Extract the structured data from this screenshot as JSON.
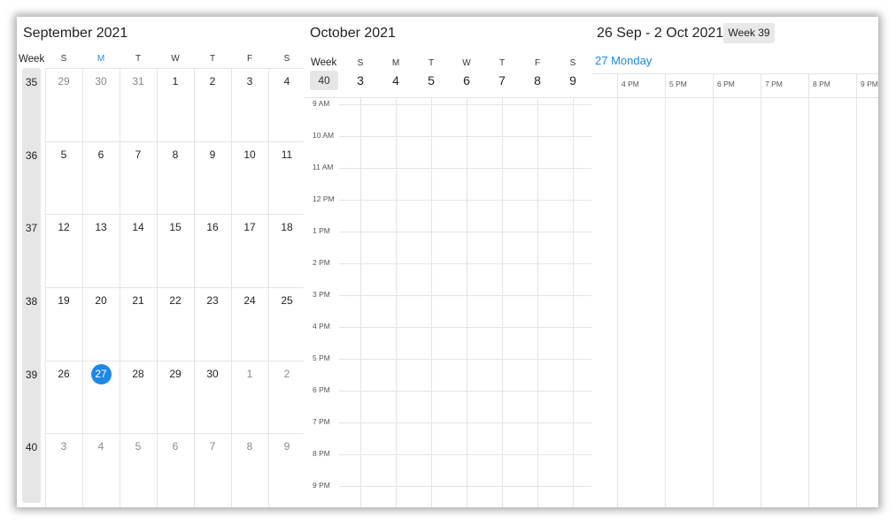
{
  "month_view": {
    "title": "September 2021",
    "week_header": "Week",
    "days_of_week": [
      "S",
      "M",
      "T",
      "W",
      "T",
      "F",
      "S"
    ],
    "today_index": 1,
    "weeks": [
      {
        "number": "35",
        "days": [
          {
            "d": "29",
            "other": true
          },
          {
            "d": "30",
            "other": true
          },
          {
            "d": "31",
            "other": true
          },
          {
            "d": "1"
          },
          {
            "d": "2"
          },
          {
            "d": "3"
          },
          {
            "d": "4"
          }
        ]
      },
      {
        "number": "36",
        "days": [
          {
            "d": "5"
          },
          {
            "d": "6"
          },
          {
            "d": "7"
          },
          {
            "d": "8"
          },
          {
            "d": "9"
          },
          {
            "d": "10"
          },
          {
            "d": "11"
          }
        ]
      },
      {
        "number": "37",
        "days": [
          {
            "d": "12"
          },
          {
            "d": "13"
          },
          {
            "d": "14"
          },
          {
            "d": "15"
          },
          {
            "d": "16"
          },
          {
            "d": "17"
          },
          {
            "d": "18"
          }
        ]
      },
      {
        "number": "38",
        "days": [
          {
            "d": "19"
          },
          {
            "d": "20"
          },
          {
            "d": "21"
          },
          {
            "d": "22"
          },
          {
            "d": "23"
          },
          {
            "d": "24"
          },
          {
            "d": "25"
          }
        ]
      },
      {
        "number": "39",
        "days": [
          {
            "d": "26"
          },
          {
            "d": "27",
            "today": true
          },
          {
            "d": "28"
          },
          {
            "d": "29"
          },
          {
            "d": "30"
          },
          {
            "d": "1",
            "other": true
          },
          {
            "d": "2",
            "other": true
          }
        ]
      },
      {
        "number": "40",
        "days": [
          {
            "d": "3",
            "other": true
          },
          {
            "d": "4",
            "other": true
          },
          {
            "d": "5",
            "other": true
          },
          {
            "d": "6",
            "other": true
          },
          {
            "d": "7",
            "other": true
          },
          {
            "d": "8",
            "other": true
          },
          {
            "d": "9",
            "other": true
          }
        ]
      }
    ]
  },
  "week_view": {
    "title": "October 2021",
    "week_label": "Week",
    "week_number": "40",
    "days_of_week": [
      "S",
      "M",
      "T",
      "W",
      "T",
      "F",
      "S"
    ],
    "dates": [
      "3",
      "4",
      "5",
      "6",
      "7",
      "8",
      "9"
    ],
    "times": [
      "9 AM",
      "10 AM",
      "11 AM",
      "12 PM",
      "1 PM",
      "2 PM",
      "3 PM",
      "4 PM",
      "5 PM",
      "6 PM",
      "7 PM",
      "8 PM",
      "9 PM"
    ]
  },
  "timeline_view": {
    "title": "26 Sep - 2 Oct 2021",
    "week_badge": "Week 39",
    "date_label": "27 Monday",
    "times": [
      "4 PM",
      "5 PM",
      "6 PM",
      "7 PM",
      "8 PM",
      "9 PM"
    ]
  },
  "colors": {
    "accent": "#1e88e5",
    "week_badge_bg": "#e6e6e6",
    "grid_line": "#e4e4e4"
  }
}
